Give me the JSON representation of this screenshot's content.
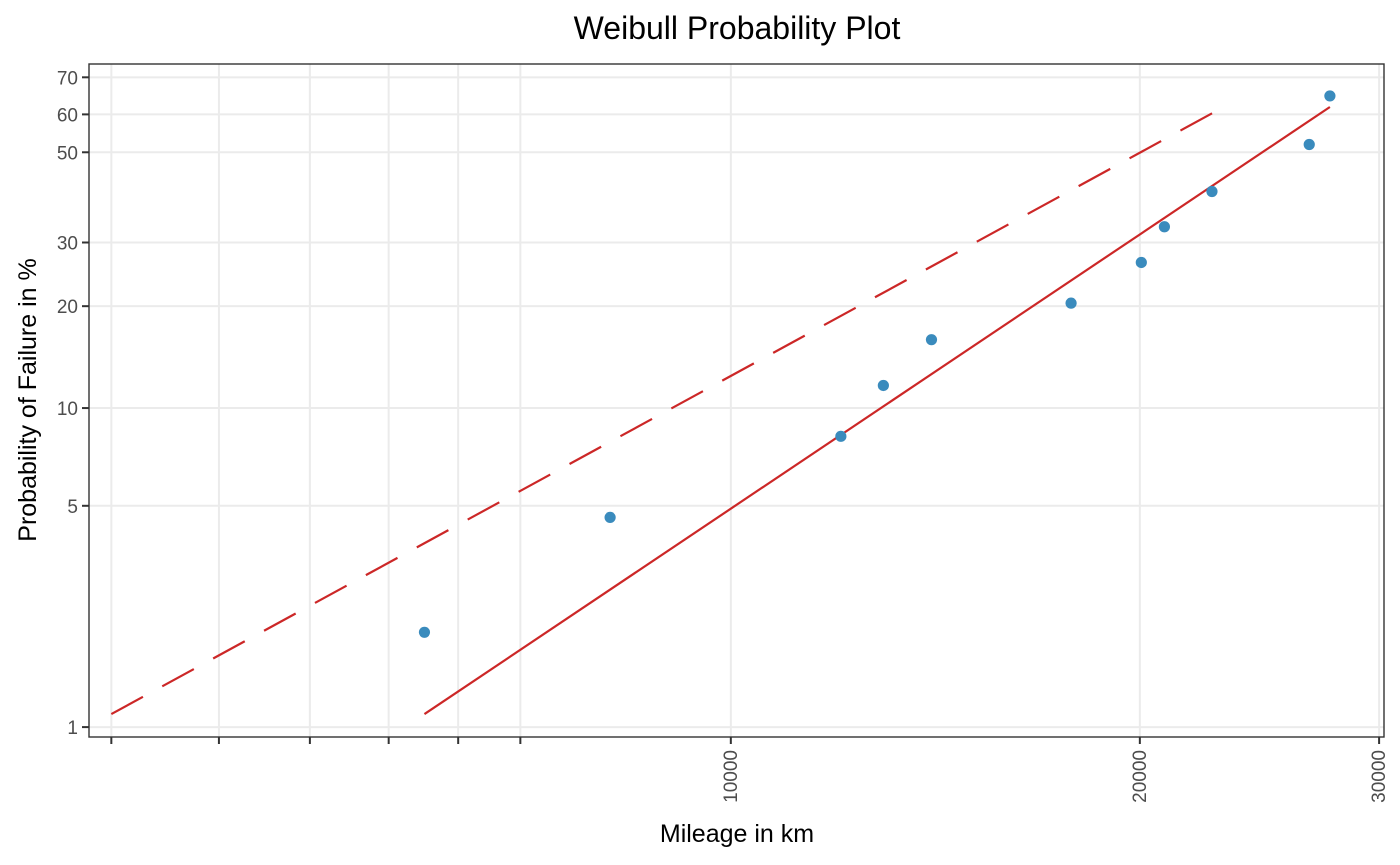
{
  "chart_data": {
    "type": "scatter",
    "title": "Weibull Probability Plot",
    "xlabel": "Mileage in km",
    "ylabel": "Probability of Failure in %",
    "x_scale": "log",
    "y_scale": "weibull",
    "xlim": [
      3370,
      30250
    ],
    "ylim": [
      0.93,
      73.5
    ],
    "x_ticks": [
      {
        "value": 3500,
        "label": ""
      },
      {
        "value": 4200,
        "label": ""
      },
      {
        "value": 4900,
        "label": ""
      },
      {
        "value": 5600,
        "label": ""
      },
      {
        "value": 6300,
        "label": ""
      },
      {
        "value": 7000,
        "label": ""
      },
      {
        "value": 10000,
        "label": "10000"
      },
      {
        "value": 20000,
        "label": "20000"
      },
      {
        "value": 30000,
        "label": "30000"
      }
    ],
    "x_grid": [
      3500,
      4200,
      4900,
      5600,
      6300,
      7000,
      10000,
      20000,
      30000
    ],
    "y_ticks": [
      {
        "value": 1,
        "label": "1"
      },
      {
        "value": 5,
        "label": "5"
      },
      {
        "value": 10,
        "label": "10"
      },
      {
        "value": 20,
        "label": "20"
      },
      {
        "value": 30,
        "label": "30"
      },
      {
        "value": 50,
        "label": "50"
      },
      {
        "value": 60,
        "label": "60"
      },
      {
        "value": 70,
        "label": "70"
      }
    ],
    "grid": true,
    "series": [
      {
        "kind": "points",
        "color": "#3a8bbd",
        "points": [
          {
            "x": 5950,
            "y": 2.0
          },
          {
            "x": 8150,
            "y": 4.6
          },
          {
            "x": 12050,
            "y": 8.2
          },
          {
            "x": 12950,
            "y": 11.7
          },
          {
            "x": 14050,
            "y": 16.0
          },
          {
            "x": 17800,
            "y": 20.4
          },
          {
            "x": 20050,
            "y": 26.5
          },
          {
            "x": 20850,
            "y": 33.0
          },
          {
            "x": 22600,
            "y": 40.5
          },
          {
            "x": 26650,
            "y": 52.0
          },
          {
            "x": 27600,
            "y": 65.0
          }
        ]
      },
      {
        "kind": "line",
        "style": "solid",
        "color": "#cc2727",
        "points": [
          {
            "x": 5950,
            "y": 1.1
          },
          {
            "x": 27600,
            "y": 62.0
          }
        ]
      },
      {
        "kind": "line",
        "style": "dashed",
        "color": "#cc2727",
        "points": [
          {
            "x": 3500,
            "y": 1.1
          },
          {
            "x": 23050,
            "y": 62.0
          }
        ]
      }
    ]
  }
}
